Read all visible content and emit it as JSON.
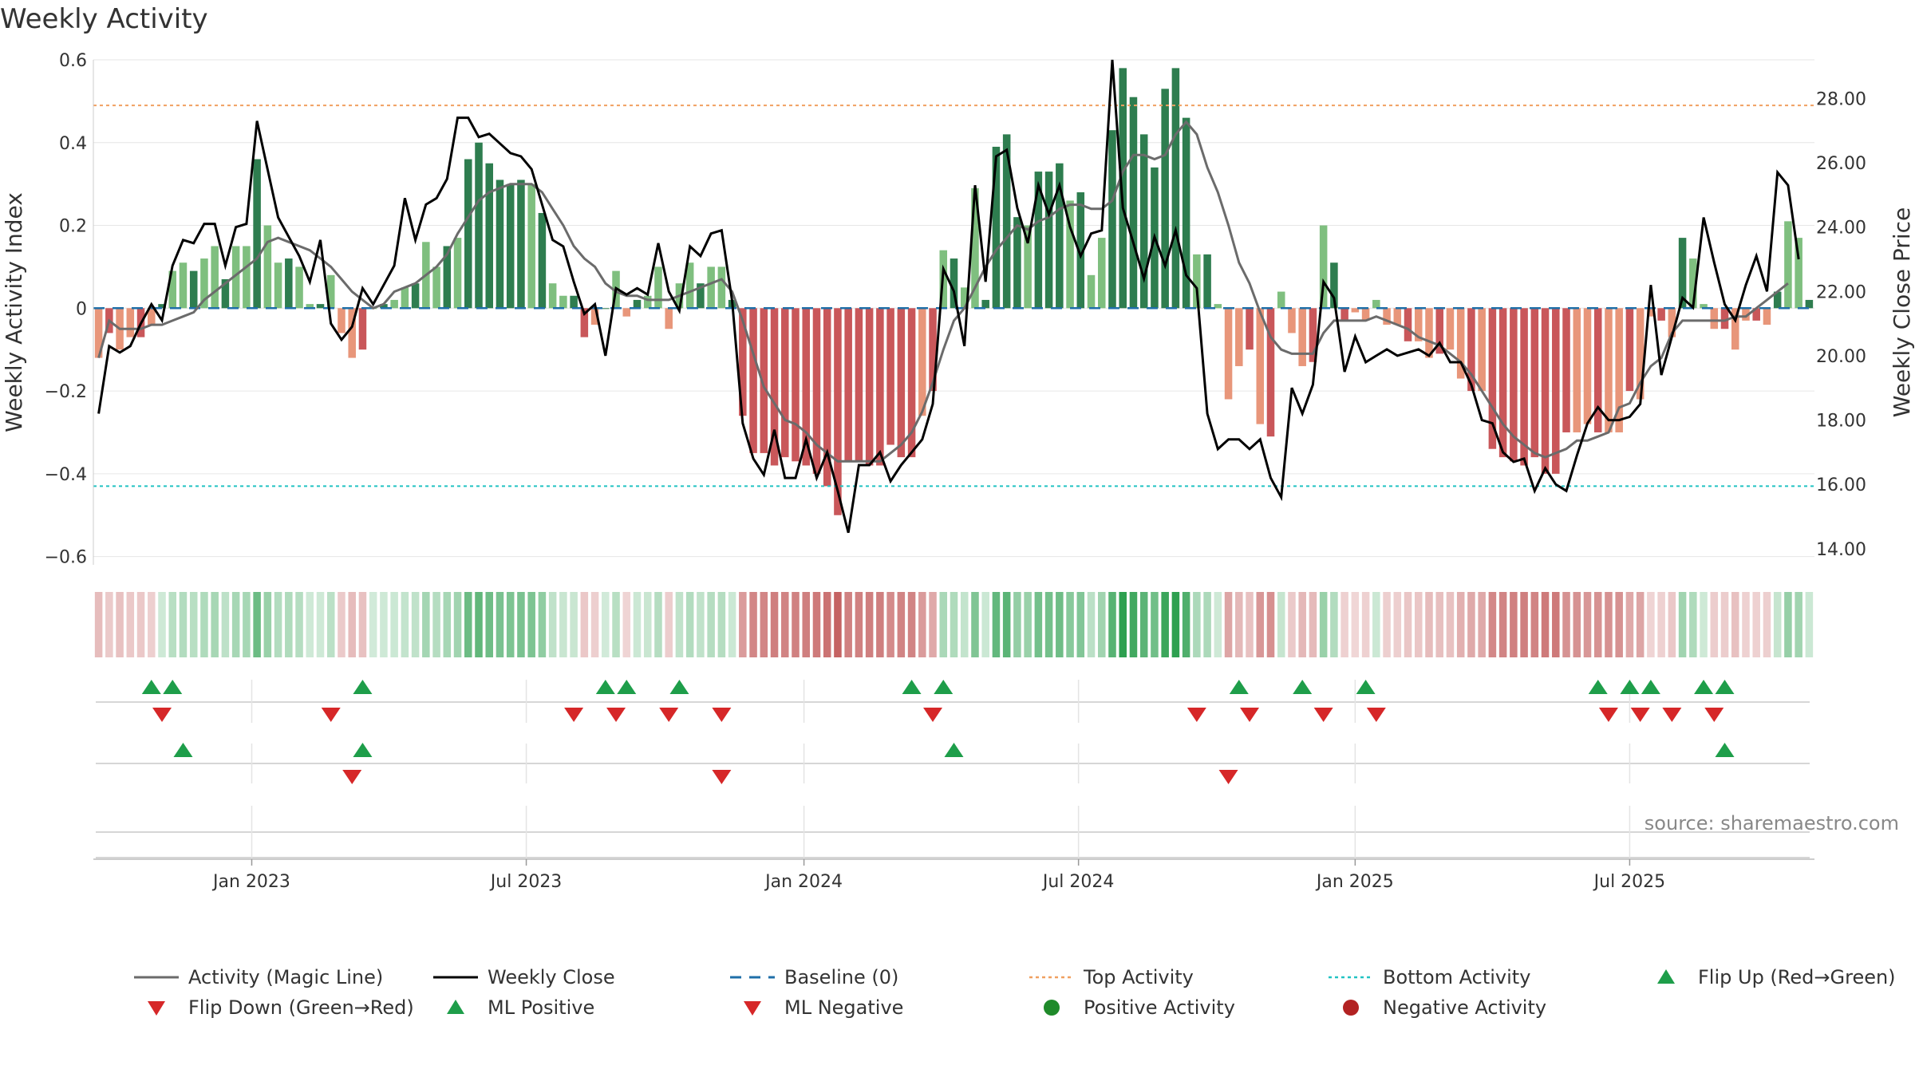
{
  "chart_data": {
    "type": "bar+line",
    "title": "Weekly Activity",
    "ylabel_left": "Weekly Activity Index",
    "ylabel_right": "Weekly Close Price",
    "source": "source: sharemaestro.com",
    "left_ticks": [
      0.6,
      0.4,
      0.2,
      0,
      -0.2,
      -0.4,
      -0.6
    ],
    "left_tick_labels": [
      "0.6",
      "0.4",
      "0.2",
      "0",
      "−0.2",
      "−0.4",
      "−0.6"
    ],
    "ylim_left": [
      -0.62,
      0.6
    ],
    "right_ticks": [
      28,
      26,
      24,
      22,
      20,
      18,
      16,
      14
    ],
    "right_tick_labels": [
      "28.00",
      "26.00",
      "24.00",
      "22.00",
      "20.00",
      "18.00",
      "16.00",
      "14.00"
    ],
    "ylim_right": [
      13.5,
      29.2
    ],
    "top_activity": 0.49,
    "bottom_activity": -0.43,
    "x_ticks": [
      {
        "week": 14.5,
        "label": "Jan 2023"
      },
      {
        "week": 40.5,
        "label": "Jul 2023"
      },
      {
        "week": 66.8,
        "label": "Jan 2024"
      },
      {
        "week": 92.8,
        "label": "Jul 2024"
      },
      {
        "week": 119,
        "label": "Jan 2025"
      },
      {
        "week": 145,
        "label": "Jul 2025"
      }
    ],
    "activity": [
      -0.12,
      -0.06,
      -0.1,
      -0.07,
      -0.07,
      -0.04,
      0.01,
      0.09,
      0.11,
      0.09,
      0.12,
      0.15,
      0.07,
      0.15,
      0.15,
      0.36,
      0.2,
      0.11,
      0.12,
      0.1,
      0.01,
      0.01,
      0.08,
      -0.06,
      -0.12,
      -0.1,
      0.0,
      0.01,
      0.02,
      0.05,
      0.06,
      0.16,
      0.1,
      0.15,
      0.17,
      0.36,
      0.4,
      0.35,
      0.31,
      0.3,
      0.31,
      0.3,
      0.23,
      0.06,
      0.03,
      0.03,
      -0.07,
      -0.04,
      0.0,
      0.09,
      -0.02,
      0.02,
      0.03,
      0.1,
      -0.05,
      0.06,
      0.11,
      0.06,
      0.1,
      0.1,
      0.02,
      -0.26,
      -0.35,
      -0.35,
      -0.38,
      -0.36,
      -0.37,
      -0.38,
      -0.4,
      -0.43,
      -0.5,
      -0.37,
      -0.37,
      -0.38,
      -0.38,
      -0.33,
      -0.36,
      -0.36,
      -0.26,
      -0.2,
      0.14,
      0.12,
      0.05,
      0.29,
      0.02,
      0.39,
      0.42,
      0.22,
      0.2,
      0.33,
      0.33,
      0.35,
      0.26,
      0.28,
      0.08,
      0.17,
      0.43,
      0.58,
      0.51,
      0.42,
      0.34,
      0.53,
      0.58,
      0.46,
      0.13,
      0.13,
      0.01,
      -0.22,
      -0.14,
      -0.1,
      -0.28,
      -0.31,
      0.04,
      -0.06,
      -0.14,
      -0.13,
      0.2,
      0.11,
      -0.03,
      -0.01,
      -0.03,
      0.02,
      -0.04,
      -0.04,
      -0.08,
      -0.08,
      -0.12,
      -0.11,
      -0.1,
      -0.17,
      -0.2,
      -0.2,
      -0.34,
      -0.36,
      -0.37,
      -0.38,
      -0.36,
      -0.4,
      -0.4,
      -0.3,
      -0.3,
      -0.28,
      -0.3,
      -0.3,
      -0.3,
      -0.2,
      -0.22,
      -0.02,
      -0.03,
      -0.07,
      0.17,
      0.12,
      0.01,
      -0.05,
      -0.05,
      -0.1,
      -0.03,
      -0.03,
      -0.04,
      0.04,
      0.21,
      0.17,
      0.02
    ],
    "price": [
      18.2,
      20.3,
      20.1,
      20.3,
      21.0,
      21.6,
      21.1,
      22.8,
      23.6,
      23.5,
      24.1,
      24.1,
      22.8,
      24.0,
      24.1,
      27.3,
      25.8,
      24.3,
      23.7,
      23.1,
      22.3,
      23.6,
      21.0,
      20.5,
      20.9,
      22.1,
      21.6,
      22.2,
      22.8,
      24.9,
      23.6,
      24.7,
      24.9,
      25.5,
      27.4,
      27.4,
      26.8,
      26.9,
      26.6,
      26.3,
      26.2,
      25.8,
      24.7,
      23.6,
      23.4,
      22.3,
      21.3,
      21.6,
      20.0,
      22.1,
      21.9,
      22.1,
      21.9,
      23.5,
      22.0,
      21.4,
      23.4,
      23.1,
      23.8,
      23.9,
      21.7,
      17.9,
      16.8,
      16.3,
      17.7,
      16.2,
      16.2,
      17.4,
      16.2,
      17.0,
      15.8,
      14.5,
      16.6,
      16.6,
      17.0,
      16.1,
      16.6,
      17.0,
      17.4,
      18.5,
      22.7,
      22.0,
      20.3,
      25.3,
      22.3,
      26.2,
      26.4,
      24.6,
      23.5,
      25.3,
      24.4,
      25.3,
      24.0,
      23.1,
      23.8,
      23.9,
      29.2,
      24.6,
      23.5,
      22.4,
      23.7,
      22.8,
      23.9,
      22.5,
      22.1,
      18.2,
      17.1,
      17.4,
      17.4,
      17.1,
      17.4,
      16.2,
      15.6,
      19.0,
      18.2,
      19.1,
      22.3,
      21.8,
      19.5,
      20.6,
      19.8,
      20.0,
      20.2,
      20.0,
      20.1,
      20.2,
      20.0,
      20.4,
      19.8,
      19.8,
      19.1,
      18.0,
      17.9,
      17.0,
      16.7,
      16.8,
      15.8,
      16.5,
      16.0,
      15.8,
      16.9,
      17.9,
      18.4,
      18.0,
      18.0,
      18.1,
      18.5,
      22.2,
      19.4,
      20.6,
      21.8,
      21.5,
      24.3,
      22.9,
      21.6,
      21.1,
      22.2,
      23.1,
      22.0,
      25.7,
      25.3,
      23.0
    ],
    "magic_line": [
      -0.12,
      -0.03,
      -0.05,
      -0.05,
      -0.05,
      -0.04,
      -0.04,
      -0.03,
      -0.02,
      -0.01,
      0.02,
      0.04,
      0.06,
      0.08,
      0.1,
      0.12,
      0.16,
      0.17,
      0.16,
      0.15,
      0.14,
      0.12,
      0.1,
      0.07,
      0.04,
      0.02,
      0.0,
      0.01,
      0.04,
      0.05,
      0.06,
      0.08,
      0.1,
      0.13,
      0.18,
      0.22,
      0.26,
      0.28,
      0.29,
      0.3,
      0.3,
      0.3,
      0.28,
      0.24,
      0.2,
      0.15,
      0.12,
      0.1,
      0.06,
      0.04,
      0.03,
      0.03,
      0.02,
      0.02,
      0.02,
      0.03,
      0.04,
      0.05,
      0.06,
      0.07,
      0.04,
      -0.03,
      -0.11,
      -0.19,
      -0.23,
      -0.27,
      -0.28,
      -0.3,
      -0.33,
      -0.35,
      -0.37,
      -0.37,
      -0.37,
      -0.37,
      -0.37,
      -0.35,
      -0.33,
      -0.3,
      -0.25,
      -0.18,
      -0.1,
      -0.03,
      0.0,
      0.05,
      0.1,
      0.14,
      0.17,
      0.2,
      0.19,
      0.21,
      0.22,
      0.24,
      0.25,
      0.25,
      0.24,
      0.24,
      0.26,
      0.33,
      0.37,
      0.37,
      0.36,
      0.37,
      0.42,
      0.45,
      0.42,
      0.34,
      0.28,
      0.2,
      0.11,
      0.06,
      -0.01,
      -0.07,
      -0.1,
      -0.11,
      -0.11,
      -0.11,
      -0.06,
      -0.03,
      -0.03,
      -0.03,
      -0.03,
      -0.02,
      -0.03,
      -0.04,
      -0.05,
      -0.07,
      -0.08,
      -0.09,
      -0.11,
      -0.13,
      -0.16,
      -0.2,
      -0.24,
      -0.28,
      -0.31,
      -0.33,
      -0.35,
      -0.36,
      -0.35,
      -0.34,
      -0.32,
      -0.32,
      -0.31,
      -0.3,
      -0.24,
      -0.23,
      -0.18,
      -0.14,
      -0.12,
      -0.06,
      -0.03,
      -0.03,
      -0.03,
      -0.03,
      -0.03,
      -0.02,
      -0.02,
      0.0,
      0.02,
      0.04,
      0.06
    ],
    "flip_up_row1": [
      5,
      7,
      25,
      48,
      50,
      55,
      77,
      80,
      108,
      114,
      120,
      142,
      145,
      147,
      152,
      154
    ],
    "flip_down_row1": [
      6,
      22,
      45,
      49,
      54,
      59,
      79,
      104,
      109,
      116,
      121,
      143,
      146,
      149,
      153
    ],
    "ml_positive_row2": [
      8,
      25,
      81,
      154
    ],
    "ml_negative_row2": [
      24,
      59,
      107
    ],
    "legend": [
      {
        "label": "Activity (Magic Line)",
        "symbol": "line",
        "color": "#6b6b6b"
      },
      {
        "label": "Weekly Close",
        "symbol": "line",
        "color": "#000000"
      },
      {
        "label": "Baseline (0)",
        "symbol": "dash",
        "color": "#1f6fa8"
      },
      {
        "label": "Top Activity",
        "symbol": "dot",
        "color": "#f0a060"
      },
      {
        "label": "Bottom Activity",
        "symbol": "dot",
        "color": "#22c3c3"
      },
      {
        "label": "Flip Up (Red→Green)",
        "symbol": "tri-up",
        "color": "#1e9e4a"
      },
      {
        "label": "Flip Down (Green→Red)",
        "symbol": "tri-down",
        "color": "#d62728"
      },
      {
        "label": "ML Positive",
        "symbol": "tri-up",
        "color": "#1e9e4a"
      },
      {
        "label": "ML Negative",
        "symbol": "tri-down",
        "color": "#d62728"
      },
      {
        "label": "Positive Activity",
        "symbol": "circle",
        "color": "#1f8a2a"
      },
      {
        "label": "Negative Activity",
        "symbol": "circle",
        "color": "#b22222"
      }
    ]
  },
  "colors": {
    "pos_strong": "#2e7d4f",
    "pos_weak": "#7fbf7f",
    "neg_strong": "#c9575a",
    "neg_weak": "#e8967a",
    "grid": "#e6e6e6",
    "axis_text": "#333333"
  }
}
